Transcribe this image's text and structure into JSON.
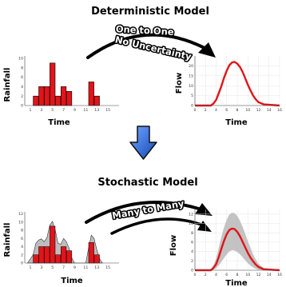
{
  "titles": {
    "deterministic": "Deterministic Model",
    "stochastic": "Stochastic Model"
  },
  "arrow_labels": {
    "line1": "One to One",
    "line2": "No Uncertainty",
    "many": "Many to Many"
  },
  "axis_labels": {
    "rainfall": "Rainfall",
    "time": "Time",
    "flow": "Flow"
  },
  "colors": {
    "bars": "#e0141a",
    "curve": "#e0141a",
    "uncertainty_band": "#bdbdbd",
    "down_arrow": "#1f5fd6"
  },
  "chart_data": [
    {
      "type": "bar",
      "panel": "deterministic-rainfall",
      "xlabel": "Time",
      "ylabel": "Rainfall",
      "x": [
        1,
        2,
        3,
        4,
        5,
        6,
        7,
        8,
        9,
        10,
        11,
        12,
        13,
        14,
        15,
        16
      ],
      "values": [
        0,
        2,
        4,
        4,
        9,
        2,
        4,
        3,
        0,
        0,
        0,
        5,
        2,
        0,
        0,
        0
      ],
      "xticks": [
        "1",
        "3",
        "5",
        "7",
        "9",
        "11",
        "13",
        "15"
      ],
      "yticks": [
        "0",
        "2",
        "4",
        "6",
        "8",
        "10"
      ],
      "xlim": [
        0,
        17
      ],
      "ylim": [
        0,
        10.5
      ]
    },
    {
      "type": "line",
      "panel": "deterministic-flow",
      "xlabel": "Time",
      "ylabel": "Flow",
      "x": [
        0,
        3,
        3.5,
        4,
        4.5,
        5,
        5.5,
        6,
        6.5,
        7,
        7.5,
        8,
        8.5,
        9,
        9.5,
        10,
        10.5,
        11,
        11.5,
        12,
        13,
        16
      ],
      "values": [
        0,
        0,
        1,
        2.8,
        6.2,
        9.8,
        14,
        17.5,
        20.3,
        21.7,
        22,
        21.1,
        19.5,
        17,
        13.8,
        10.5,
        7.6,
        5,
        3.1,
        1.7,
        0.6,
        0
      ],
      "xticks": [
        "0",
        "2",
        "4",
        "6",
        "8",
        "10",
        "12",
        "14",
        "16"
      ],
      "yticks": [
        "0",
        "5",
        "10",
        "15",
        "20"
      ],
      "xlim": [
        0,
        16
      ],
      "ylim": [
        0,
        25
      ]
    },
    {
      "type": "bar",
      "panel": "stochastic-rainfall",
      "xlabel": "Time",
      "ylabel": "Rainfall",
      "x": [
        1,
        2,
        3,
        4,
        5,
        6,
        7,
        8,
        9,
        10,
        11,
        12,
        13,
        14,
        15,
        16
      ],
      "values": [
        0,
        2,
        4,
        4,
        9,
        2,
        4,
        3,
        0,
        0,
        0,
        5,
        2,
        0,
        0,
        0
      ],
      "band_x": [
        0.5,
        1.5,
        2,
        2.5,
        3,
        3.5,
        4,
        4.5,
        5,
        5.5,
        6,
        6.5,
        7,
        7.5,
        8,
        8.5,
        9,
        11,
        11.5,
        12,
        12.5,
        13,
        13.5,
        14
      ],
      "band_values": [
        0,
        2,
        4.8,
        5.6,
        5.9,
        5.2,
        6.2,
        9.2,
        10.2,
        8,
        4.8,
        4.6,
        6,
        5.2,
        3.6,
        1.2,
        0,
        0,
        3.6,
        6.8,
        6,
        3.2,
        1,
        0
      ],
      "xticks": [
        "1",
        "3",
        "5",
        "7",
        "9",
        "11",
        "13",
        "15"
      ],
      "yticks": [
        "0",
        "2",
        "4",
        "6",
        "8",
        "10",
        "12"
      ],
      "xlim": [
        0,
        17
      ],
      "ylim": [
        0,
        12.5
      ]
    },
    {
      "type": "line",
      "panel": "stochastic-flow",
      "xlabel": "Time",
      "ylabel": "Flow",
      "x": [
        0,
        3,
        3.5,
        4,
        4.5,
        5,
        5.5,
        6,
        6.5,
        7,
        7.5,
        8,
        8.5,
        9,
        9.5,
        10,
        10.5,
        11,
        11.5,
        12,
        13,
        16
      ],
      "values": [
        0,
        0,
        0.5,
        1.3,
        2.8,
        4.6,
        6.3,
        7.7,
        8.6,
        8.9,
        8.8,
        8.2,
        7.3,
        6.1,
        4.9,
        3.7,
        2.7,
        1.9,
        1.2,
        0.7,
        0.2,
        0
      ],
      "band_upper": [
        0,
        0,
        1,
        2.5,
        4.8,
        7.2,
        9.2,
        10.8,
        11.9,
        12.3,
        12.2,
        11.6,
        10.6,
        9.3,
        7.8,
        6.2,
        4.8,
        3.4,
        2.3,
        1.4,
        0.5,
        0
      ],
      "band_lower": [
        0,
        0,
        0.1,
        0.4,
        1,
        1.8,
        2.6,
        3.4,
        4,
        4.3,
        4.2,
        3.9,
        3.4,
        2.8,
        2.1,
        1.5,
        1,
        0.6,
        0.3,
        0.1,
        0,
        0
      ],
      "xticks": [
        "0",
        "2",
        "4",
        "6",
        "8",
        "10",
        "12",
        "14",
        "16"
      ],
      "yticks": [
        "0",
        "2",
        "4",
        "6",
        "8",
        "10",
        "12"
      ],
      "xlim": [
        0,
        16
      ],
      "ylim": [
        0,
        13
      ]
    }
  ]
}
